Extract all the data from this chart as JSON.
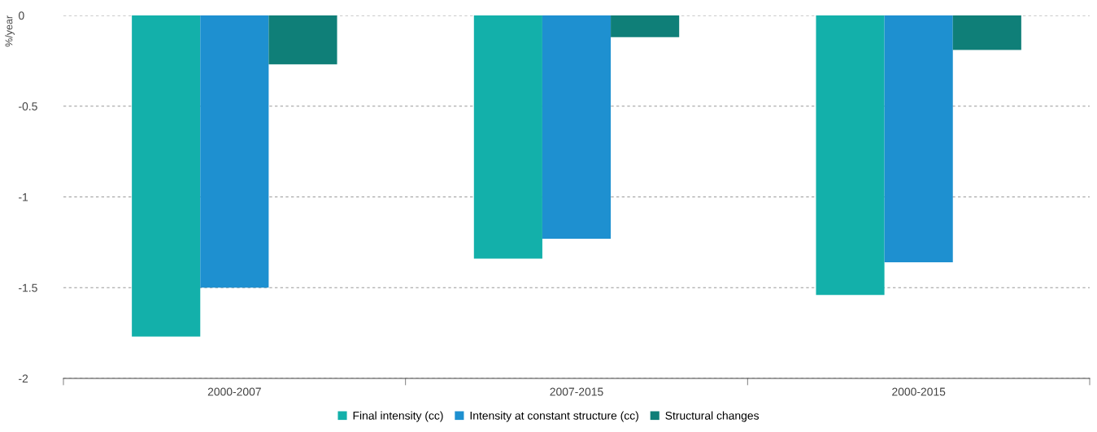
{
  "chart_data": {
    "type": "bar",
    "ylabel": "%/year",
    "categories": [
      "2000-2007",
      "2007-2015",
      "2000-2015"
    ],
    "series": [
      {
        "name": "Final intensity (cc)",
        "color": "#13b0aa",
        "values": [
          -1.77,
          -1.34,
          -1.54
        ]
      },
      {
        "name": "Intensity at constant structure (cc)",
        "color": "#1e90d0",
        "values": [
          -1.5,
          -1.23,
          -1.36
        ]
      },
      {
        "name": "Structural changes",
        "color": "#0f7f78",
        "values": [
          -0.27,
          -0.12,
          -0.19
        ]
      }
    ],
    "ylim": [
      -2,
      0
    ],
    "yticks": [
      -2,
      -1.5,
      -1,
      -0.5,
      0
    ],
    "grid": "y",
    "legend": "bottom"
  }
}
